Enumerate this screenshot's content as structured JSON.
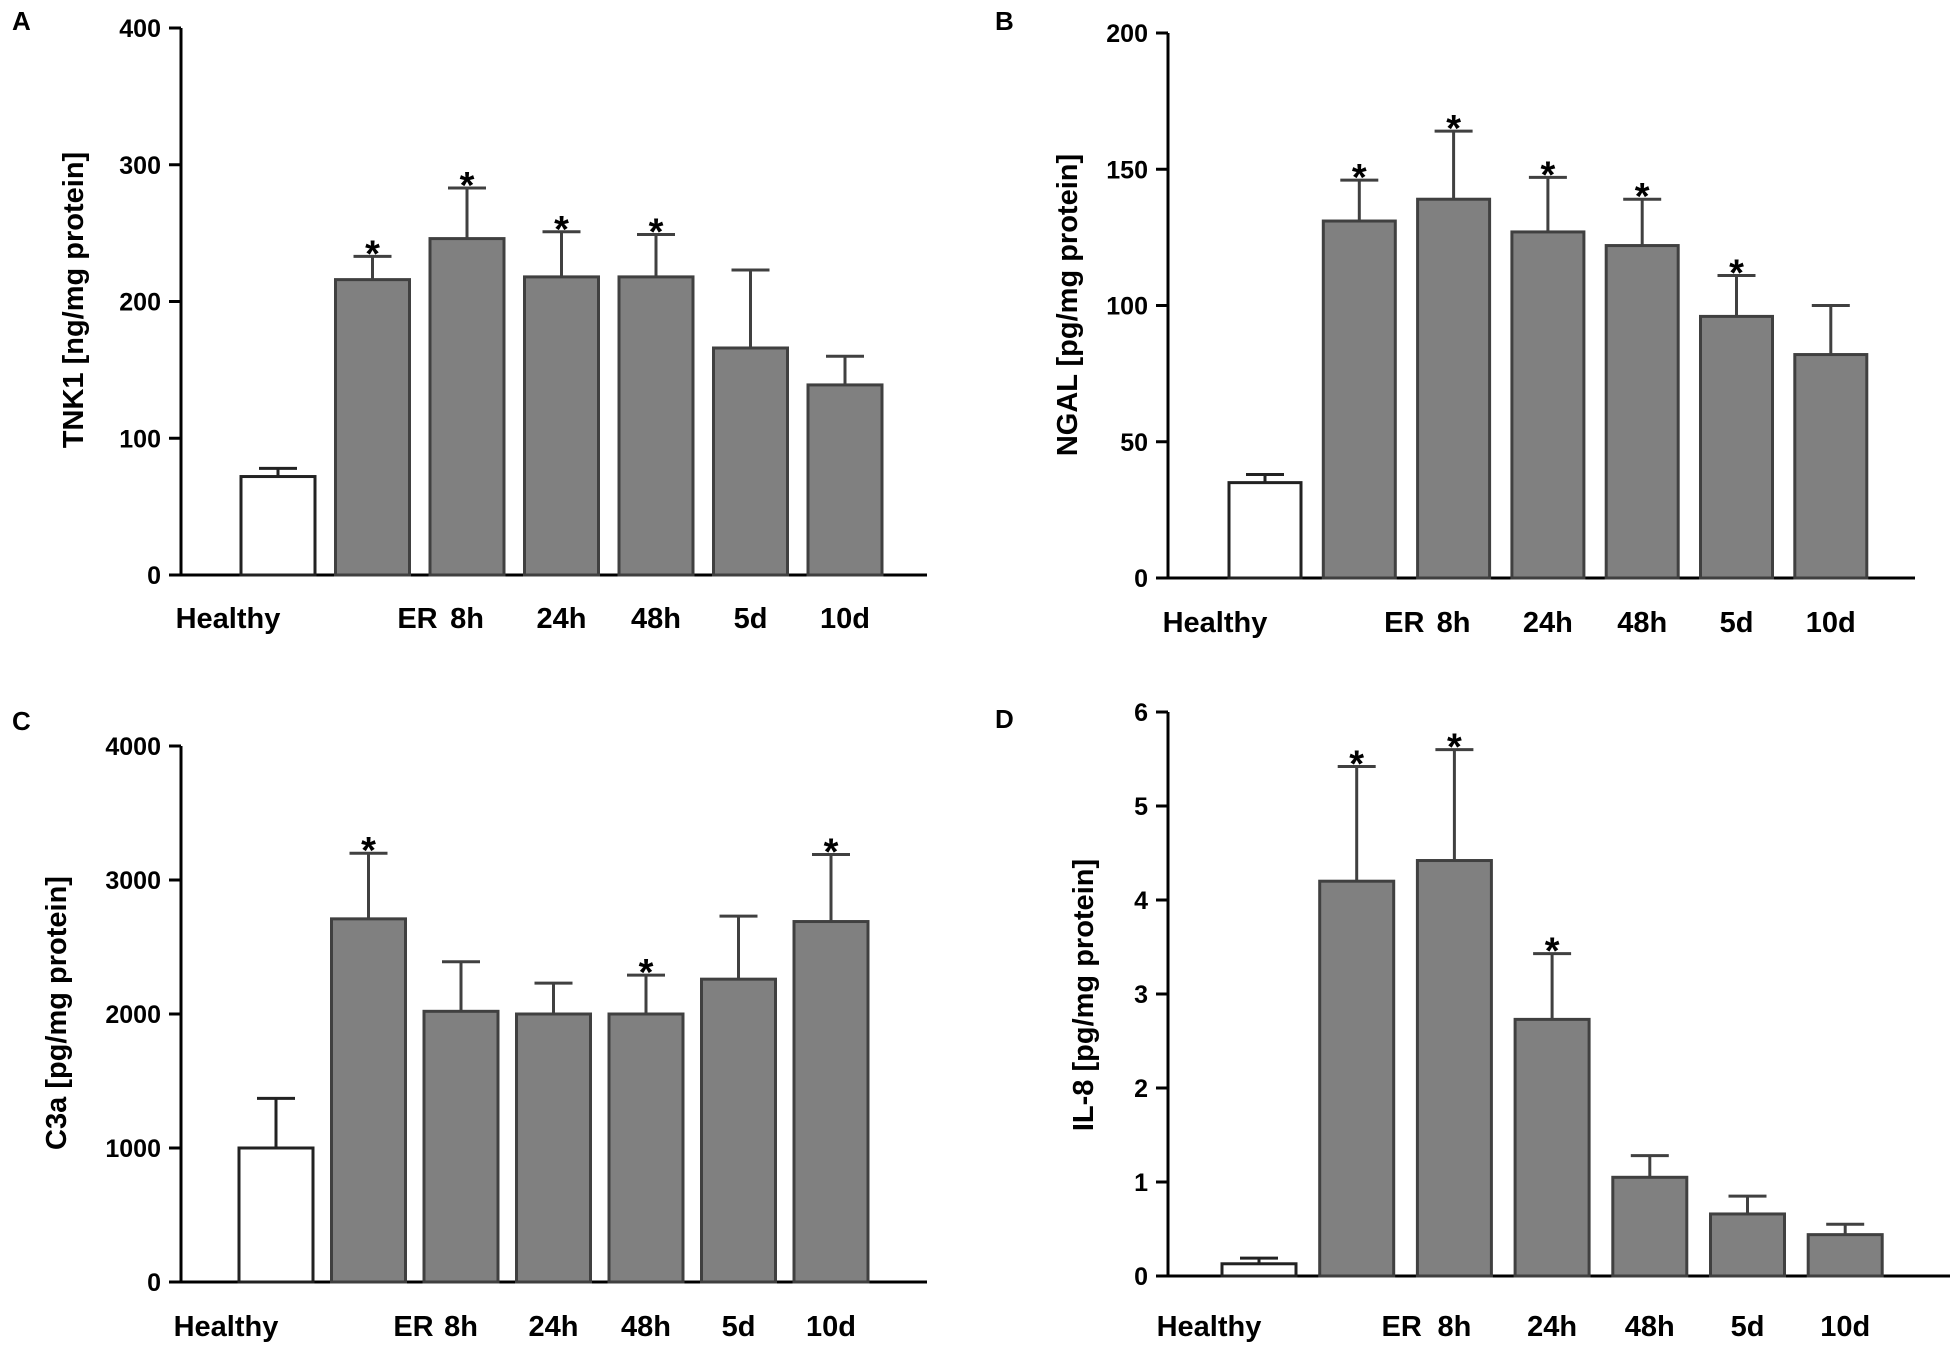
{
  "chart_data": [
    {
      "panel": "A",
      "type": "bar",
      "title": "",
      "xlabel": "",
      "ylabel": "TNK1 [ng/mg protein]",
      "categories": [
        "Healthy",
        "ER",
        "8h",
        "24h",
        "48h",
        "5d",
        "10d"
      ],
      "values": [
        72,
        216,
        246,
        218,
        218,
        166,
        139
      ],
      "errors": [
        6,
        17,
        37,
        33,
        31,
        57,
        21
      ],
      "significant": [
        false,
        true,
        true,
        true,
        true,
        false,
        false
      ],
      "significance_marker": "*",
      "ylim": [
        0,
        400
      ],
      "yticks": [
        "0",
        "100",
        "200",
        "300",
        "400"
      ],
      "colors": {
        "control": "#ffffff",
        "bars": "#808080",
        "edge": "#404040"
      }
    },
    {
      "panel": "B",
      "type": "bar",
      "title": "",
      "xlabel": "",
      "ylabel": "NGAL [pg/mg protein]",
      "categories": [
        "Healthy",
        "ER",
        "8h",
        "24h",
        "48h",
        "5d",
        "10d"
      ],
      "values": [
        35,
        131,
        139,
        127,
        122,
        96,
        82
      ],
      "errors": [
        3,
        15,
        25,
        20,
        17,
        15,
        18
      ],
      "significant": [
        false,
        true,
        true,
        true,
        true,
        true,
        false
      ],
      "significance_marker": "*",
      "ylim": [
        0,
        200
      ],
      "yticks": [
        "0",
        "50",
        "100",
        "150",
        "200"
      ],
      "colors": {
        "control": "#ffffff",
        "bars": "#808080",
        "edge": "#404040"
      }
    },
    {
      "panel": "C",
      "type": "bar",
      "title": "",
      "xlabel": "",
      "ylabel": "C3a [pg/mg protein]",
      "categories": [
        "Healthy",
        "ER",
        "8h",
        "24h",
        "48h",
        "5d",
        "10d"
      ],
      "values": [
        1000,
        2710,
        2020,
        2000,
        2000,
        2260,
        2690
      ],
      "errors": [
        370,
        490,
        370,
        230,
        290,
        470,
        500
      ],
      "significant": [
        false,
        true,
        false,
        false,
        true,
        false,
        true
      ],
      "significance_marker": "*",
      "ylim": [
        0,
        4000
      ],
      "yticks": [
        "0",
        "1000",
        "2000",
        "3000",
        "4000"
      ],
      "colors": {
        "control": "#ffffff",
        "bars": "#808080",
        "edge": "#404040"
      }
    },
    {
      "panel": "D",
      "type": "bar",
      "title": "",
      "xlabel": "",
      "ylabel": "IL-8 [pg/mg protein]",
      "categories": [
        "Healthy",
        "ER",
        "8h",
        "24h",
        "48h",
        "5d",
        "10d"
      ],
      "values": [
        0.13,
        4.2,
        4.42,
        2.73,
        1.05,
        0.66,
        0.44
      ],
      "errors": [
        0.06,
        1.22,
        1.18,
        0.7,
        0.23,
        0.19,
        0.11
      ],
      "significant": [
        false,
        true,
        true,
        true,
        false,
        false,
        false
      ],
      "significance_marker": "*",
      "ylim": [
        0,
        6
      ],
      "yticks": [
        "0",
        "1",
        "2",
        "3",
        "4",
        "5",
        "6"
      ],
      "colors": {
        "control": "#ffffff",
        "bars": "#808080",
        "edge": "#404040"
      }
    }
  ]
}
